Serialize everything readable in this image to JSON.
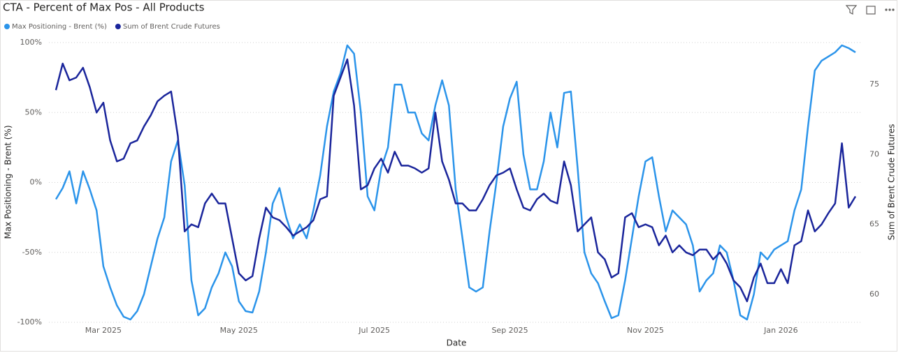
{
  "chart_data": {
    "type": "line",
    "title": "CTA - Percent of Max Pos - All Products",
    "x_label": "Date",
    "y_label": "Max Positioning - Brent (%)",
    "y2_label": "Sum of Brent Crude Futures",
    "categories": [
      null,
      null,
      null,
      null,
      null,
      null,
      null,
      "Mar 2025",
      null,
      null,
      null,
      null,
      null,
      null,
      null,
      null,
      null,
      null,
      null,
      null,
      null,
      null,
      null,
      null,
      null,
      null,
      null,
      "May 2025",
      null,
      null,
      null,
      null,
      null,
      null,
      null,
      null,
      null,
      null,
      null,
      null,
      null,
      null,
      null,
      null,
      null,
      null,
      null,
      "Jul 2025",
      null,
      null,
      null,
      null,
      null,
      null,
      null,
      null,
      null,
      null,
      null,
      null,
      null,
      null,
      null,
      null,
      null,
      null,
      null,
      "Sep 2025",
      null,
      null,
      null,
      null,
      null,
      null,
      null,
      null,
      null,
      null,
      null,
      null,
      null,
      null,
      null,
      null,
      null,
      null,
      null,
      "Nov 2025",
      null,
      null,
      null,
      null,
      null,
      null,
      null,
      null,
      null,
      null,
      null,
      null,
      null,
      null,
      null,
      null,
      null,
      null,
      null,
      "Jan 2026",
      null,
      null,
      null,
      null,
      null,
      null,
      null,
      null,
      null,
      null,
      null
    ],
    "series": [
      {
        "name": "Max Positioning - Brent (%)",
        "color": "#2b94ea",
        "axis": "y",
        "values": [
          -12,
          -4,
          8,
          -15,
          8,
          -5,
          -20,
          -60,
          -75,
          -88,
          -96,
          -98,
          -92,
          -80,
          -60,
          -40,
          -25,
          15,
          30,
          -2,
          -70,
          -95,
          -90,
          -75,
          -65,
          -50,
          -60,
          -85,
          -92,
          -93,
          -78,
          -50,
          -15,
          -4,
          -25,
          -40,
          -30,
          -40,
          -20,
          5,
          40,
          65,
          78,
          98,
          92,
          50,
          -10,
          -20,
          10,
          25,
          70,
          70,
          50,
          50,
          35,
          30,
          55,
          73,
          55,
          -5,
          -40,
          -75,
          -78,
          -75,
          -35,
          0,
          40,
          60,
          72,
          20,
          -5,
          -5,
          15,
          50,
          25,
          64,
          65,
          10,
          -50,
          -65,
          -72,
          -85,
          -97,
          -95,
          -70,
          -40,
          -10,
          15,
          18,
          -10,
          -35,
          -20,
          -25,
          -30,
          -45,
          -78,
          -70,
          -65,
          -45,
          -50,
          -70,
          -95,
          -98,
          -80,
          -50,
          -55,
          -48,
          -45,
          -42,
          -20,
          -5,
          40,
          80,
          87,
          90,
          93,
          98,
          96,
          93
        ]
      },
      {
        "name": "Sum of Brent Crude Futures",
        "color": "#1a259b",
        "axis": "y2",
        "values": [
          74.6,
          76.5,
          75.3,
          75.5,
          76.2,
          74.8,
          73,
          73.7,
          71,
          69.5,
          69.7,
          70.8,
          71,
          72,
          72.8,
          73.8,
          74.2,
          74.5,
          71.3,
          64.5,
          65,
          64.8,
          66.5,
          67.2,
          66.5,
          66.5,
          64,
          61.5,
          61,
          61.3,
          64,
          66.2,
          65.5,
          65.3,
          64.8,
          64.2,
          64.5,
          64.8,
          65.3,
          66.8,
          67,
          74.2,
          75.5,
          76.8,
          73.5,
          67.5,
          67.8,
          69,
          69.7,
          68.7,
          70.2,
          69.2,
          69.2,
          69,
          68.7,
          69,
          73,
          69.5,
          68.2,
          66.5,
          66.5,
          66,
          66,
          66.8,
          67.8,
          68.5,
          68.7,
          69,
          67.5,
          66.2,
          66,
          66.8,
          67.2,
          66.7,
          66.5,
          69.5,
          67.8,
          64.5,
          65,
          65.5,
          63,
          62.5,
          61.2,
          61.5,
          65.5,
          65.8,
          64.8,
          65,
          64.8,
          63.5,
          64.2,
          63,
          63.5,
          63,
          62.8,
          63.2,
          63.2,
          62.5,
          63,
          62.2,
          61,
          60.5,
          59.5,
          61.2,
          62.2,
          60.8,
          60.8,
          61.8,
          60.8,
          63.5,
          63.8,
          66,
          64.5,
          65,
          65.8,
          66.5,
          70.8,
          66.2,
          67
        ]
      }
    ],
    "ylim": [
      -100,
      100
    ],
    "yticks": [
      {
        "value": -100,
        "label": "-100%"
      },
      {
        "value": -50,
        "label": "-50%"
      },
      {
        "value": 0,
        "label": "0%"
      },
      {
        "value": 50,
        "label": "50%"
      },
      {
        "value": 100,
        "label": "100%"
      }
    ],
    "y2lim": [
      58,
      78
    ],
    "y2ticks": [
      60,
      65,
      70,
      75
    ],
    "grid": true
  }
}
